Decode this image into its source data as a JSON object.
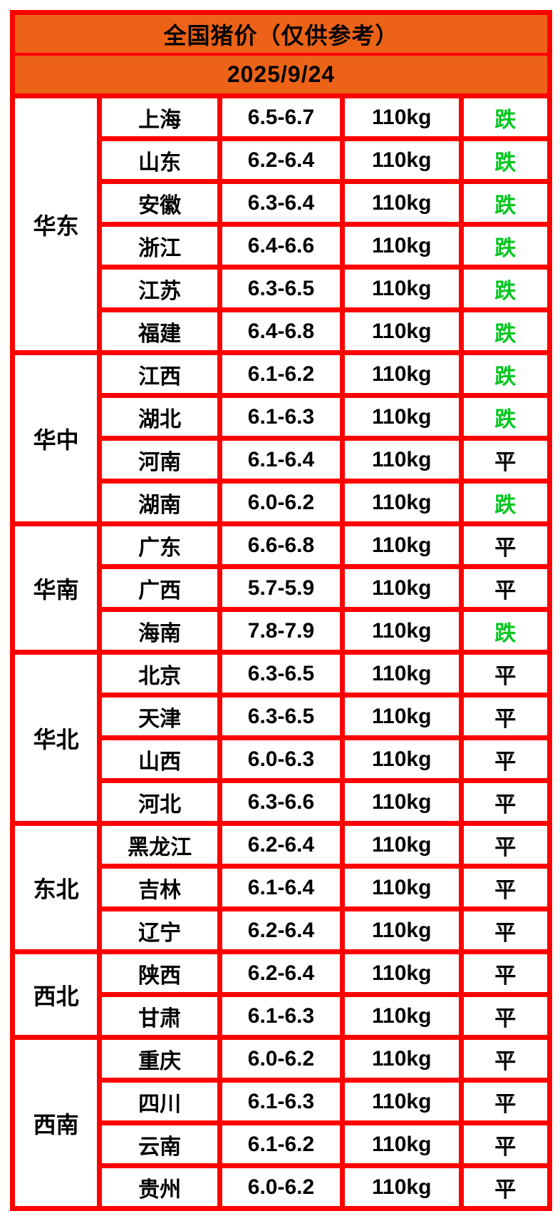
{
  "header": {
    "title": "全国猪价（仅供参考）",
    "date": "2025/9/24"
  },
  "table": {
    "status_fall": "跌",
    "status_flat": "平",
    "groups": [
      {
        "region": "华东",
        "rows": [
          {
            "province": "上海",
            "price": "6.5-6.7",
            "weight": "110kg",
            "status": "跌"
          },
          {
            "province": "山东",
            "price": "6.2-6.4",
            "weight": "110kg",
            "status": "跌"
          },
          {
            "province": "安徽",
            "price": "6.3-6.4",
            "weight": "110kg",
            "status": "跌"
          },
          {
            "province": "浙江",
            "price": "6.4-6.6",
            "weight": "110kg",
            "status": "跌"
          },
          {
            "province": "江苏",
            "price": "6.3-6.5",
            "weight": "110kg",
            "status": "跌"
          },
          {
            "province": "福建",
            "price": "6.4-6.8",
            "weight": "110kg",
            "status": "跌"
          }
        ]
      },
      {
        "region": "华中",
        "rows": [
          {
            "province": "江西",
            "price": "6.1-6.2",
            "weight": "110kg",
            "status": "跌"
          },
          {
            "province": "湖北",
            "price": "6.1-6.3",
            "weight": "110kg",
            "status": "跌"
          },
          {
            "province": "河南",
            "price": "6.1-6.4",
            "weight": "110kg",
            "status": "平"
          },
          {
            "province": "湖南",
            "price": "6.0-6.2",
            "weight": "110kg",
            "status": "跌"
          }
        ]
      },
      {
        "region": "华南",
        "rows": [
          {
            "province": "广东",
            "price": "6.6-6.8",
            "weight": "110kg",
            "status": "平"
          },
          {
            "province": "广西",
            "price": "5.7-5.9",
            "weight": "110kg",
            "status": "平"
          },
          {
            "province": "海南",
            "price": "7.8-7.9",
            "weight": "110kg",
            "status": "跌"
          }
        ]
      },
      {
        "region": "华北",
        "rows": [
          {
            "province": "北京",
            "price": "6.3-6.5",
            "weight": "110kg",
            "status": "平"
          },
          {
            "province": "天津",
            "price": "6.3-6.5",
            "weight": "110kg",
            "status": "平"
          },
          {
            "province": "山西",
            "price": "6.0-6.3",
            "weight": "110kg",
            "status": "平"
          },
          {
            "province": "河北",
            "price": "6.3-6.6",
            "weight": "110kg",
            "status": "平"
          }
        ]
      },
      {
        "region": "东北",
        "rows": [
          {
            "province": "黑龙江",
            "price": "6.2-6.4",
            "weight": "110kg",
            "status": "平"
          },
          {
            "province": "吉林",
            "price": "6.1-6.4",
            "weight": "110kg",
            "status": "平"
          },
          {
            "province": "辽宁",
            "price": "6.2-6.4",
            "weight": "110kg",
            "status": "平"
          }
        ]
      },
      {
        "region": "西北",
        "rows": [
          {
            "province": "陕西",
            "price": "6.2-6.4",
            "weight": "110kg",
            "status": "平"
          },
          {
            "province": "甘肃",
            "price": "6.1-6.3",
            "weight": "110kg",
            "status": "平"
          }
        ]
      },
      {
        "region": "西南",
        "rows": [
          {
            "province": "重庆",
            "price": "6.0-6.2",
            "weight": "110kg",
            "status": "平"
          },
          {
            "province": "四川",
            "price": "6.1-6.3",
            "weight": "110kg",
            "status": "平"
          },
          {
            "province": "云南",
            "price": "6.1-6.2",
            "weight": "110kg",
            "status": "平"
          },
          {
            "province": "贵州",
            "price": "6.0-6.2",
            "weight": "110kg",
            "status": "平"
          }
        ]
      }
    ]
  },
  "colors": {
    "header_orange": "#EC6318",
    "border_red": "#FF0000",
    "fall_green": "#00C71E",
    "flat_black": "#000000"
  },
  "chart_data": {
    "type": "table",
    "title": "全国猪价（仅供参考）",
    "date": "2025/9/24",
    "rows": [
      [
        "华东",
        "上海",
        "6.5-6.7",
        "110kg",
        "跌"
      ],
      [
        "华东",
        "山东",
        "6.2-6.4",
        "110kg",
        "跌"
      ],
      [
        "华东",
        "安徽",
        "6.3-6.4",
        "110kg",
        "跌"
      ],
      [
        "华东",
        "浙江",
        "6.4-6.6",
        "110kg",
        "跌"
      ],
      [
        "华东",
        "江苏",
        "6.3-6.5",
        "110kg",
        "跌"
      ],
      [
        "华东",
        "福建",
        "6.4-6.8",
        "110kg",
        "跌"
      ],
      [
        "华中",
        "江西",
        "6.1-6.2",
        "110kg",
        "跌"
      ],
      [
        "华中",
        "湖北",
        "6.1-6.3",
        "110kg",
        "跌"
      ],
      [
        "华中",
        "河南",
        "6.1-6.4",
        "110kg",
        "平"
      ],
      [
        "华中",
        "湖南",
        "6.0-6.2",
        "110kg",
        "跌"
      ],
      [
        "华南",
        "广东",
        "6.6-6.8",
        "110kg",
        "平"
      ],
      [
        "华南",
        "广西",
        "5.7-5.9",
        "110kg",
        "平"
      ],
      [
        "华南",
        "海南",
        "7.8-7.9",
        "110kg",
        "跌"
      ],
      [
        "华北",
        "北京",
        "6.3-6.5",
        "110kg",
        "平"
      ],
      [
        "华北",
        "天津",
        "6.3-6.5",
        "110kg",
        "平"
      ],
      [
        "华北",
        "山西",
        "6.0-6.3",
        "110kg",
        "平"
      ],
      [
        "华北",
        "河北",
        "6.3-6.6",
        "110kg",
        "平"
      ],
      [
        "东北",
        "黑龙江",
        "6.2-6.4",
        "110kg",
        "平"
      ],
      [
        "东北",
        "吉林",
        "6.1-6.4",
        "110kg",
        "平"
      ],
      [
        "东北",
        "辽宁",
        "6.2-6.4",
        "110kg",
        "平"
      ],
      [
        "西北",
        "陕西",
        "6.2-6.4",
        "110kg",
        "平"
      ],
      [
        "西北",
        "甘肃",
        "6.1-6.3",
        "110kg",
        "平"
      ],
      [
        "西南",
        "重庆",
        "6.0-6.2",
        "110kg",
        "平"
      ],
      [
        "西南",
        "四川",
        "6.1-6.3",
        "110kg",
        "平"
      ],
      [
        "西南",
        "云南",
        "6.1-6.2",
        "110kg",
        "平"
      ],
      [
        "西南",
        "贵州",
        "6.0-6.2",
        "110kg",
        "平"
      ]
    ]
  }
}
